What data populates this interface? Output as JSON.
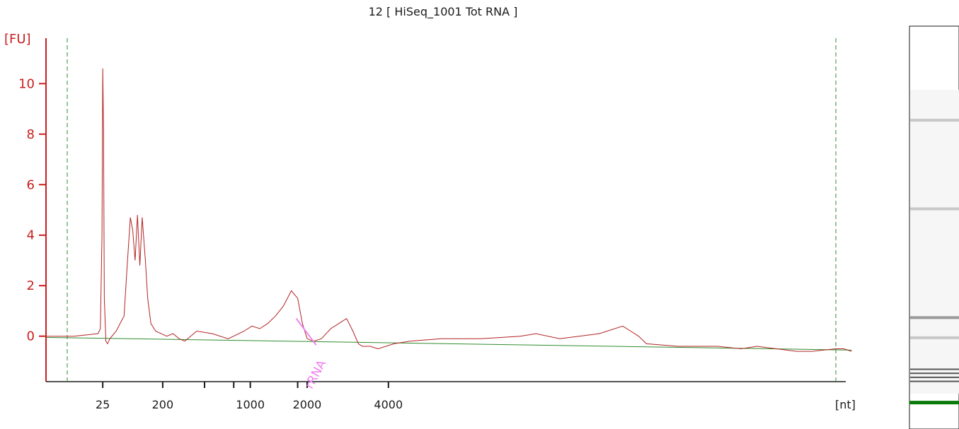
{
  "chart_data": {
    "type": "line",
    "title": "12  [ HiSeq_1001 Tot RNA ]",
    "ylabel": "[FU]",
    "xlabel": "[nt]",
    "ylim": [
      -1.8,
      11.8
    ],
    "yticks": [
      0,
      2,
      4,
      6,
      8,
      10
    ],
    "xticks": [
      {
        "label": "25",
        "t": 0.071
      },
      {
        "label": "200",
        "t": 0.147
      },
      {
        "label": "",
        "t": 0.2
      },
      {
        "label": "",
        "t": 0.237
      },
      {
        "label": "1000",
        "t": 0.258
      },
      {
        "label": "",
        "t": 0.318
      },
      {
        "label": "2000",
        "t": 0.33
      },
      {
        "label": "4000",
        "t": 0.433
      }
    ],
    "grid": false,
    "colors": {
      "axis": "#c81e1e",
      "trace": "#b22222",
      "baseline": "#2e8b2e",
      "marker_dashed": "#2e8b2e",
      "annotation": "#ee82ee",
      "gel_marker": "#0a7a0a"
    },
    "series": [
      {
        "t": [
          0.0,
          0.026,
          0.034,
          0.065,
          0.068,
          0.07,
          0.071,
          0.072,
          0.073,
          0.075,
          0.077,
          0.08,
          0.088,
          0.098,
          0.102,
          0.106,
          0.109,
          0.112,
          0.115,
          0.118,
          0.121,
          0.125,
          0.128,
          0.132,
          0.138,
          0.145,
          0.152,
          0.16,
          0.168,
          0.175,
          0.19,
          0.21,
          0.23,
          0.25,
          0.26,
          0.27,
          0.28,
          0.29,
          0.3,
          0.31,
          0.318,
          0.324,
          0.33,
          0.338,
          0.348,
          0.36,
          0.37,
          0.38,
          0.388,
          0.395,
          0.4,
          0.41,
          0.42,
          0.44,
          0.46,
          0.5,
          0.55,
          0.6,
          0.62,
          0.65,
          0.7,
          0.73,
          0.74,
          0.75,
          0.76,
          0.8,
          0.85,
          0.88,
          0.9,
          0.95,
          0.97,
          1.0,
          1.01,
          1.02
        ],
        "y": [
          0.0,
          0.0,
          0.0,
          0.1,
          0.3,
          4.0,
          10.6,
          8.0,
          1.5,
          -0.2,
          -0.3,
          -0.1,
          0.2,
          0.8,
          2.8,
          4.7,
          4.2,
          3.0,
          4.8,
          2.8,
          4.7,
          3.0,
          1.5,
          0.5,
          0.2,
          0.1,
          0.0,
          0.1,
          -0.1,
          -0.2,
          0.2,
          0.1,
          -0.1,
          0.2,
          0.4,
          0.3,
          0.5,
          0.8,
          1.2,
          1.8,
          1.5,
          0.5,
          -0.1,
          -0.2,
          -0.1,
          0.3,
          0.5,
          0.7,
          0.2,
          -0.3,
          -0.4,
          -0.4,
          -0.5,
          -0.3,
          -0.2,
          -0.1,
          -0.1,
          0.0,
          0.1,
          -0.1,
          0.1,
          0.4,
          0.2,
          0.0,
          -0.3,
          -0.4,
          -0.4,
          -0.5,
          -0.4,
          -0.6,
          -0.6,
          -0.5,
          -0.5,
          -0.6
        ]
      }
    ],
    "baseline": {
      "t": [
        0.0,
        1.02
      ],
      "y": [
        -0.05,
        -0.55
      ]
    },
    "markers_dashed": [
      0.026,
      1.0
    ],
    "annotations": [
      {
        "text": "rRNA",
        "t": 0.336,
        "y": -1.5
      }
    ]
  },
  "gel_lane": {
    "bands": [
      0.23,
      0.45,
      0.72,
      0.77,
      0.85,
      0.86,
      0.87,
      0.88
    ],
    "marker": 0.93
  }
}
